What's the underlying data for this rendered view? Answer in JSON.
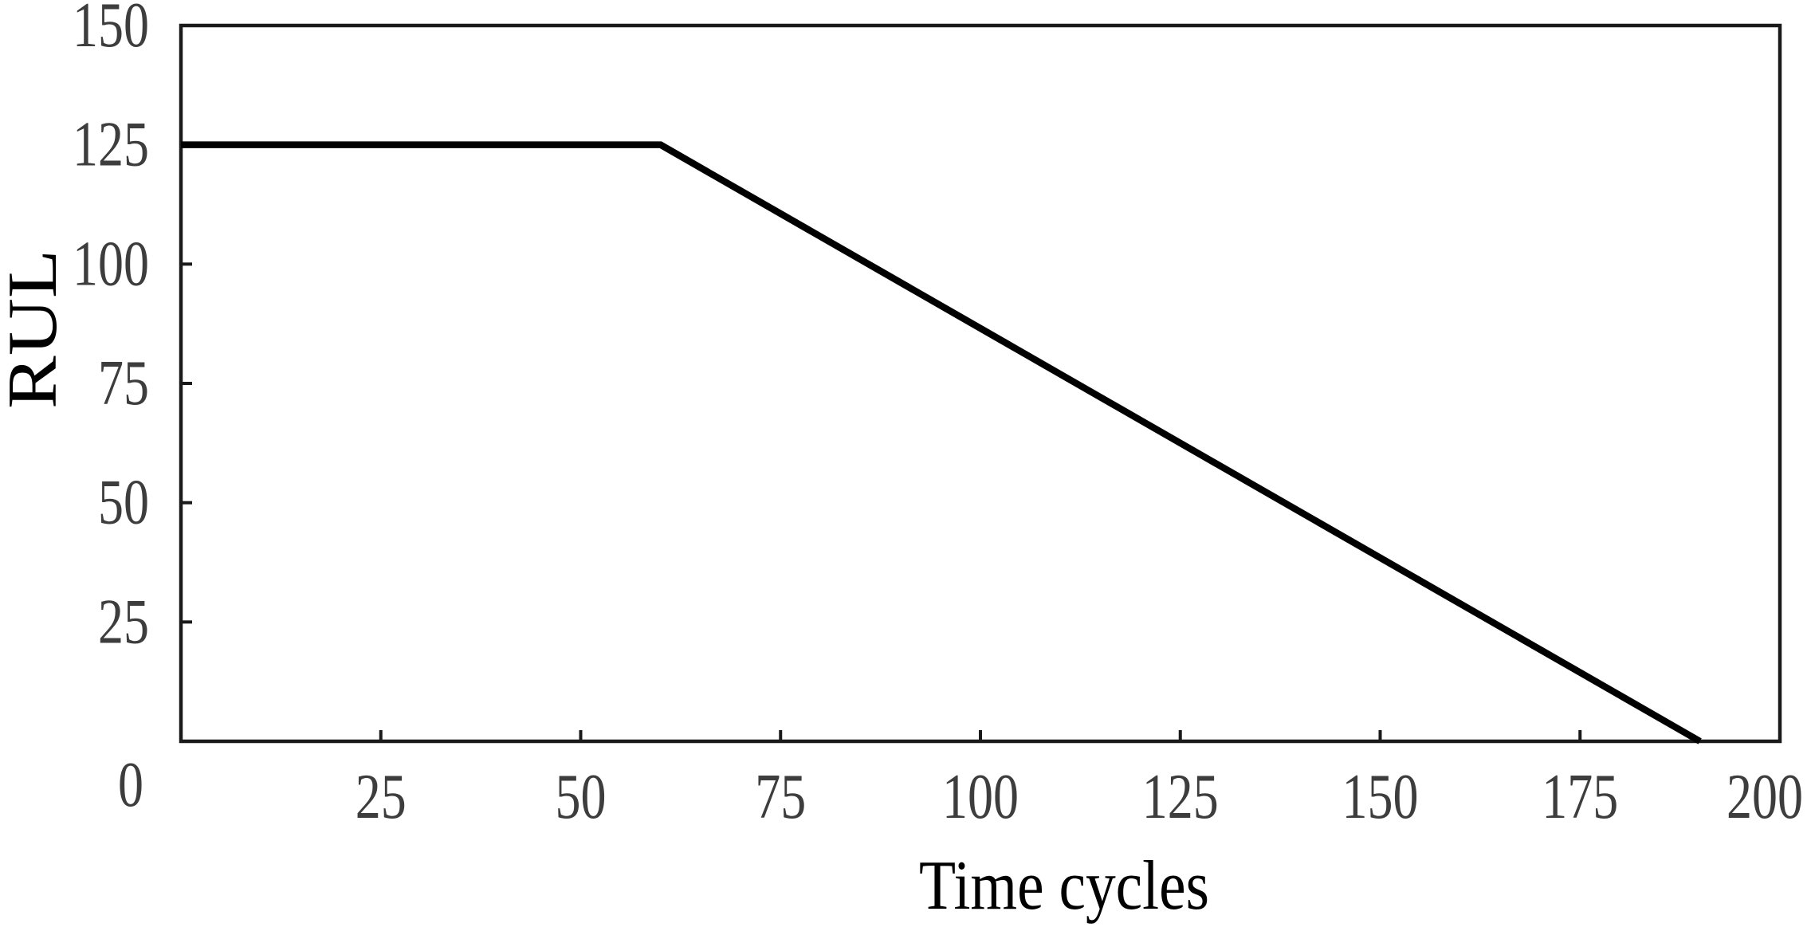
{
  "figure": {
    "background": "#ffffff"
  },
  "chart_data": {
    "type": "line",
    "title": "",
    "xlabel": "Time cycles",
    "ylabel": "RUL",
    "xlim": [
      0,
      200
    ],
    "ylim": [
      0,
      150
    ],
    "xticks": [
      0,
      25,
      50,
      75,
      100,
      125,
      150,
      175,
      200
    ],
    "yticks": [
      0,
      25,
      50,
      75,
      100,
      125,
      150
    ],
    "grid": false,
    "legend": null,
    "series": [
      {
        "name": "RUL",
        "points": [
          [
            0,
            125
          ],
          [
            60,
            125
          ],
          [
            190,
            0
          ]
        ]
      }
    ],
    "styles": {
      "line_color": "#000000",
      "spine_color": "#1a1a1a",
      "tick_label_color": "#3d3d3d",
      "axis_label_color": "#000000",
      "background": "#ffffff"
    }
  }
}
